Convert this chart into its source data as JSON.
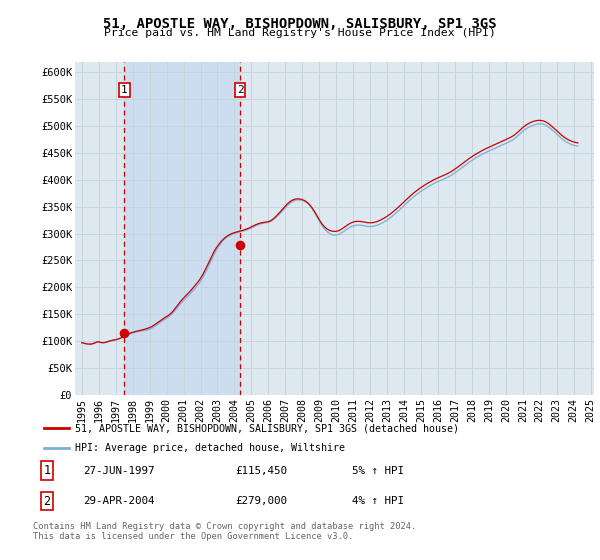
{
  "title": "51, APOSTLE WAY, BISHOPDOWN, SALISBURY, SP1 3GS",
  "subtitle": "Price paid vs. HM Land Registry's House Price Index (HPI)",
  "ylim": [
    0,
    620000
  ],
  "background_color": "#ffffff",
  "plot_bg_color": "#dde8f0",
  "grid_color": "#c8d4dc",
  "red_line_color": "#cc0000",
  "blue_line_color": "#7ab0d4",
  "fill_color": "#ccddf0",
  "sale1": {
    "date_str": "27-JUN-1997",
    "price": 115450,
    "label": "1",
    "pct": "5%",
    "dir": "↑"
  },
  "sale2": {
    "date_str": "29-APR-2004",
    "price": 279000,
    "label": "2",
    "pct": "4%",
    "dir": "↑"
  },
  "legend_label_red": "51, APOSTLE WAY, BISHOPDOWN, SALISBURY, SP1 3GS (detached house)",
  "legend_label_blue": "HPI: Average price, detached house, Wiltshire",
  "footnote": "Contains HM Land Registry data © Crown copyright and database right 2024.\nThis data is licensed under the Open Government Licence v3.0.",
  "sale1_year": 1997.5,
  "sale2_year": 2004.33,
  "hpi_years": [
    1995.0,
    1995.083,
    1995.167,
    1995.25,
    1995.333,
    1995.417,
    1995.5,
    1995.583,
    1995.667,
    1995.75,
    1995.833,
    1995.917,
    1996.0,
    1996.083,
    1996.167,
    1996.25,
    1996.333,
    1996.417,
    1996.5,
    1996.583,
    1996.667,
    1996.75,
    1996.833,
    1996.917,
    1997.0,
    1997.083,
    1997.167,
    1997.25,
    1997.333,
    1997.417,
    1997.5,
    1997.583,
    1997.667,
    1997.75,
    1997.833,
    1997.917,
    1998.0,
    1998.083,
    1998.167,
    1998.25,
    1998.333,
    1998.417,
    1998.5,
    1998.583,
    1998.667,
    1998.75,
    1998.833,
    1998.917,
    1999.0,
    1999.083,
    1999.167,
    1999.25,
    1999.333,
    1999.417,
    1999.5,
    1999.583,
    1999.667,
    1999.75,
    1999.833,
    1999.917,
    2000.0,
    2000.083,
    2000.167,
    2000.25,
    2000.333,
    2000.417,
    2000.5,
    2000.583,
    2000.667,
    2000.75,
    2000.833,
    2000.917,
    2001.0,
    2001.083,
    2001.167,
    2001.25,
    2001.333,
    2001.417,
    2001.5,
    2001.583,
    2001.667,
    2001.75,
    2001.833,
    2001.917,
    2002.0,
    2002.083,
    2002.167,
    2002.25,
    2002.333,
    2002.417,
    2002.5,
    2002.583,
    2002.667,
    2002.75,
    2002.833,
    2002.917,
    2003.0,
    2003.083,
    2003.167,
    2003.25,
    2003.333,
    2003.417,
    2003.5,
    2003.583,
    2003.667,
    2003.75,
    2003.833,
    2003.917,
    2004.0,
    2004.083,
    2004.167,
    2004.25,
    2004.333,
    2004.417,
    2004.5,
    2004.583,
    2004.667,
    2004.75,
    2004.833,
    2004.917,
    2005.0,
    2005.083,
    2005.167,
    2005.25,
    2005.333,
    2005.417,
    2005.5,
    2005.583,
    2005.667,
    2005.75,
    2005.833,
    2005.917,
    2006.0,
    2006.083,
    2006.167,
    2006.25,
    2006.333,
    2006.417,
    2006.5,
    2006.583,
    2006.667,
    2006.75,
    2006.833,
    2006.917,
    2007.0,
    2007.083,
    2007.167,
    2007.25,
    2007.333,
    2007.417,
    2007.5,
    2007.583,
    2007.667,
    2007.75,
    2007.833,
    2007.917,
    2008.0,
    2008.083,
    2008.167,
    2008.25,
    2008.333,
    2008.417,
    2008.5,
    2008.583,
    2008.667,
    2008.75,
    2008.833,
    2008.917,
    2009.0,
    2009.083,
    2009.167,
    2009.25,
    2009.333,
    2009.417,
    2009.5,
    2009.583,
    2009.667,
    2009.75,
    2009.833,
    2009.917,
    2010.0,
    2010.083,
    2010.167,
    2010.25,
    2010.333,
    2010.417,
    2010.5,
    2010.583,
    2010.667,
    2010.75,
    2010.833,
    2010.917,
    2011.0,
    2011.083,
    2011.167,
    2011.25,
    2011.333,
    2011.417,
    2011.5,
    2011.583,
    2011.667,
    2011.75,
    2011.833,
    2011.917,
    2012.0,
    2012.083,
    2012.167,
    2012.25,
    2012.333,
    2012.417,
    2012.5,
    2012.583,
    2012.667,
    2012.75,
    2012.833,
    2012.917,
    2013.0,
    2013.083,
    2013.167,
    2013.25,
    2013.333,
    2013.417,
    2013.5,
    2013.583,
    2013.667,
    2013.75,
    2013.833,
    2013.917,
    2014.0,
    2014.083,
    2014.167,
    2014.25,
    2014.333,
    2014.417,
    2014.5,
    2014.583,
    2014.667,
    2014.75,
    2014.833,
    2014.917,
    2015.0,
    2015.083,
    2015.167,
    2015.25,
    2015.333,
    2015.417,
    2015.5,
    2015.583,
    2015.667,
    2015.75,
    2015.833,
    2015.917,
    2016.0,
    2016.083,
    2016.167,
    2016.25,
    2016.333,
    2016.417,
    2016.5,
    2016.583,
    2016.667,
    2016.75,
    2016.833,
    2016.917,
    2017.0,
    2017.083,
    2017.167,
    2017.25,
    2017.333,
    2017.417,
    2017.5,
    2017.583,
    2017.667,
    2017.75,
    2017.833,
    2017.917,
    2018.0,
    2018.083,
    2018.167,
    2018.25,
    2018.333,
    2018.417,
    2018.5,
    2018.583,
    2018.667,
    2018.75,
    2018.833,
    2018.917,
    2019.0,
    2019.083,
    2019.167,
    2019.25,
    2019.333,
    2019.417,
    2019.5,
    2019.583,
    2019.667,
    2019.75,
    2019.833,
    2019.917,
    2020.0,
    2020.083,
    2020.167,
    2020.25,
    2020.333,
    2020.417,
    2020.5,
    2020.583,
    2020.667,
    2020.75,
    2020.833,
    2020.917,
    2021.0,
    2021.083,
    2021.167,
    2021.25,
    2021.333,
    2021.417,
    2021.5,
    2021.583,
    2021.667,
    2021.75,
    2021.833,
    2021.917,
    2022.0,
    2022.083,
    2022.167,
    2022.25,
    2022.333,
    2022.417,
    2022.5,
    2022.583,
    2022.667,
    2022.75,
    2022.833,
    2022.917,
    2023.0,
    2023.083,
    2023.167,
    2023.25,
    2023.333,
    2023.417,
    2023.5,
    2023.583,
    2023.667,
    2023.75,
    2023.833,
    2023.917,
    2024.0,
    2024.083,
    2024.167,
    2024.25
  ],
  "hpi_values": [
    96500,
    95800,
    95200,
    94700,
    94300,
    94100,
    94200,
    94800,
    95600,
    96700,
    97800,
    98600,
    98200,
    97500,
    97000,
    96800,
    97100,
    97800,
    98700,
    99600,
    100400,
    101100,
    101700,
    102100,
    102400,
    103000,
    103800,
    104700,
    105700,
    106800,
    108000,
    109300,
    110700,
    112100,
    113400,
    114500,
    115300,
    116000,
    116600,
    117200,
    117800,
    118300,
    118700,
    119100,
    119500,
    120000,
    120600,
    121300,
    122200,
    123400,
    124800,
    126500,
    128300,
    130200,
    132100,
    134000,
    135900,
    137700,
    139400,
    141000,
    142600,
    144300,
    146200,
    148400,
    150900,
    153700,
    156800,
    160100,
    163400,
    166700,
    169800,
    172700,
    175400,
    178000,
    180600,
    183200,
    185900,
    188700,
    191600,
    194600,
    197700,
    200900,
    204100,
    207400,
    211000,
    215200,
    219800,
    224800,
    230100,
    235600,
    241300,
    247000,
    252600,
    258000,
    263200,
    268000,
    272600,
    276800,
    280600,
    284000,
    287100,
    289800,
    292100,
    294000,
    295600,
    297000,
    298300,
    299400,
    300300,
    301100,
    301900,
    302600,
    303300,
    304000,
    304700,
    305400,
    306200,
    307100,
    308100,
    309200,
    310500,
    311800,
    313100,
    314400,
    315600,
    316700,
    317600,
    318400,
    319000,
    319500,
    319900,
    320200,
    320800,
    321700,
    323000,
    324700,
    326700,
    328900,
    331300,
    333900,
    336600,
    339400,
    342300,
    345300,
    348200,
    351000,
    353600,
    355900,
    357800,
    359500,
    360800,
    361800,
    362400,
    362700,
    362600,
    362300,
    361700,
    360800,
    359500,
    357900,
    355800,
    353200,
    350100,
    346500,
    342400,
    337900,
    333100,
    328200,
    323400,
    318900,
    314800,
    311100,
    307800,
    305000,
    302600,
    300600,
    299100,
    298000,
    297300,
    296900,
    297100,
    297700,
    298700,
    300000,
    301600,
    303400,
    305300,
    307200,
    309000,
    310700,
    312200,
    313400,
    314400,
    315100,
    315600,
    315800,
    315800,
    315600,
    315300,
    314800,
    314300,
    313800,
    313400,
    313100,
    313000,
    313100,
    313400,
    313900,
    314600,
    315500,
    316500,
    317700,
    319000,
    320400,
    321900,
    323500,
    325200,
    327000,
    328900,
    330900,
    333000,
    335200,
    337500,
    339800,
    342200,
    344600,
    347000,
    349500,
    352000,
    354500,
    357000,
    359500,
    362000,
    364400,
    366700,
    368900,
    371000,
    373000,
    375000,
    376900,
    378700,
    380500,
    382200,
    383900,
    385500,
    387100,
    388600,
    390100,
    391500,
    392900,
    394200,
    395500,
    396700,
    397900,
    399000,
    400100,
    401200,
    402400,
    403600,
    404900,
    406300,
    407800,
    409400,
    411100,
    412900,
    414800,
    416700,
    418700,
    420700,
    422700,
    424700,
    426700,
    428700,
    430600,
    432500,
    434300,
    436100,
    437800,
    439500,
    441100,
    442700,
    444200,
    445700,
    447100,
    448500,
    449800,
    451100,
    452300,
    453500,
    454700,
    455900,
    457100,
    458300,
    459500,
    460700,
    461900,
    463100,
    464300,
    465500,
    466700,
    467800,
    469000,
    470200,
    471500,
    472900,
    474500,
    476300,
    478300,
    480500,
    482900,
    485400,
    487900,
    490300,
    492500,
    494400,
    496100,
    497600,
    499000,
    500200,
    501300,
    502300,
    503100,
    503700,
    504100,
    504300,
    504200,
    503800,
    503000,
    501900,
    500500,
    498800,
    496900,
    494700,
    492400,
    490000,
    487500,
    485000,
    482500,
    480100,
    477800,
    475700,
    473700,
    471900,
    470200,
    468700,
    467400,
    466200,
    465200,
    464300,
    463600,
    463000,
    462600
  ],
  "red_values": [
    97200,
    96400,
    95700,
    95100,
    94600,
    94300,
    94200,
    94500,
    95200,
    96300,
    97500,
    98500,
    98300,
    97700,
    97200,
    96900,
    97100,
    97700,
    98500,
    99400,
    100200,
    100900,
    101500,
    102000,
    102400,
    103100,
    104000,
    105100,
    106200,
    107500,
    108800,
    110200,
    111600,
    113000,
    114300,
    115450,
    116300,
    117100,
    117800,
    118400,
    119000,
    119600,
    120200,
    120900,
    121600,
    122400,
    123200,
    124100,
    125100,
    126300,
    127700,
    129400,
    131200,
    133100,
    135000,
    136900,
    138800,
    140600,
    142300,
    143900,
    145500,
    147200,
    149200,
    151500,
    154100,
    157100,
    160400,
    163900,
    167400,
    170800,
    174100,
    177100,
    179900,
    182600,
    185300,
    188000,
    190800,
    193700,
    196700,
    199800,
    203000,
    206200,
    209500,
    212900,
    216600,
    220900,
    225600,
    230700,
    236100,
    241700,
    247400,
    253000,
    258400,
    263500,
    268300,
    272700,
    276600,
    280200,
    283500,
    286500,
    289200,
    291700,
    293800,
    295600,
    297200,
    298600,
    299800,
    300900,
    301800,
    302600,
    303300,
    304000,
    304700,
    305400,
    306200,
    307000,
    307900,
    308900,
    310000,
    311200,
    312600,
    313900,
    315200,
    316400,
    317500,
    318500,
    319300,
    320000,
    320500,
    321000,
    321400,
    321700,
    322300,
    323200,
    324600,
    326400,
    328600,
    331000,
    333600,
    336400,
    339300,
    342200,
    345200,
    348200,
    351200,
    354000,
    356600,
    358800,
    360700,
    362200,
    363300,
    364100,
    364500,
    364600,
    364400,
    364000,
    363200,
    362100,
    360700,
    359000,
    356800,
    354200,
    351100,
    347600,
    343700,
    339500,
    335000,
    330400,
    325900,
    321700,
    317900,
    314600,
    311800,
    309500,
    307700,
    306300,
    305300,
    304600,
    304200,
    304000,
    304200,
    304800,
    305700,
    307000,
    308600,
    310400,
    312300,
    314200,
    316000,
    317700,
    319200,
    320400,
    321400,
    322100,
    322600,
    322800,
    322800,
    322600,
    322300,
    321800,
    321300,
    320800,
    320400,
    320100,
    320000,
    320100,
    320400,
    320900,
    321600,
    322500,
    323500,
    324700,
    326000,
    327400,
    328900,
    330500,
    332200,
    334000,
    335900,
    337900,
    340000,
    342200,
    344500,
    346800,
    349200,
    351600,
    354000,
    356500,
    359000,
    361500,
    364000,
    366500,
    369000,
    371400,
    373700,
    375900,
    378000,
    380000,
    382000,
    383900,
    385700,
    387500,
    389200,
    390900,
    392500,
    394100,
    395600,
    397100,
    398500,
    399900,
    401200,
    402500,
    403700,
    404900,
    406000,
    407100,
    408200,
    409400,
    410600,
    411900,
    413300,
    414800,
    416400,
    418100,
    419900,
    421800,
    423700,
    425700,
    427700,
    429700,
    431700,
    433700,
    435700,
    437600,
    439500,
    441300,
    443100,
    444800,
    446500,
    448100,
    449700,
    451200,
    452700,
    454100,
    455500,
    456800,
    458100,
    459300,
    460500,
    461700,
    462900,
    464100,
    465300,
    466500,
    467700,
    468900,
    470100,
    471300,
    472500,
    473700,
    474800,
    476000,
    477200,
    478500,
    479900,
    481500,
    483300,
    485300,
    487500,
    489900,
    492400,
    494900,
    497300,
    499500,
    501400,
    503100,
    504600,
    506000,
    507200,
    508300,
    509200,
    509900,
    510400,
    510700,
    510700,
    510500,
    510000,
    509200,
    508100,
    506700,
    505000,
    503100,
    500900,
    498600,
    496200,
    493700,
    491200,
    488700,
    486300,
    484000,
    481900,
    479900,
    478100,
    476400,
    474900,
    473600,
    472400,
    471400,
    470500,
    469800,
    469200,
    468800
  ]
}
